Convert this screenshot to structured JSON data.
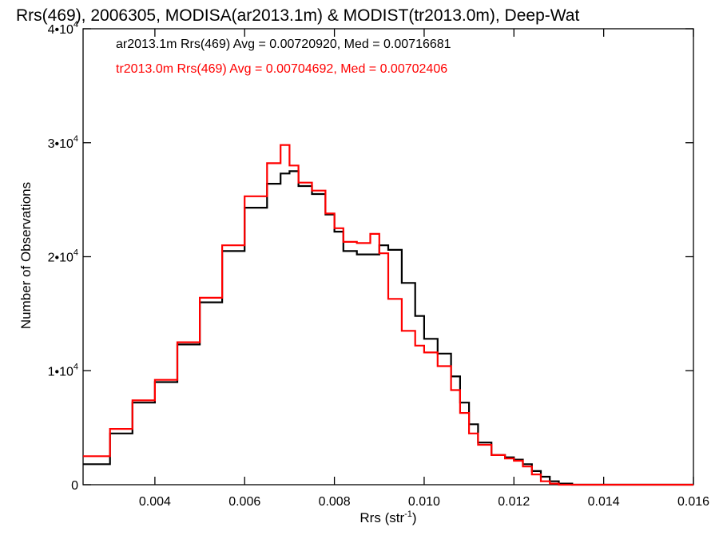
{
  "chart_data": {
    "type": "line",
    "title": "Rrs(469), 2006305, MODISA(ar2013.1m) & MODIST(tr2013.0m), Deep-Wat",
    "xlabel": "Rrs (str",
    "xlabel_sup": "-1",
    "xlabel_close": ")",
    "ylabel": "Number of Observations",
    "xlim": [
      0.0024,
      0.016
    ],
    "ylim": [
      0,
      40000
    ],
    "x_ticks": [
      0.004,
      0.006,
      0.008,
      0.01,
      0.012,
      0.014,
      0.016
    ],
    "x_tick_labels": [
      "0.004",
      "0.006",
      "0.008",
      "0.010",
      "0.012",
      "0.014",
      "0.016"
    ],
    "y_ticks": [
      0,
      10000,
      20000,
      30000,
      40000
    ],
    "y_tick_labels": [
      {
        "base": "0",
        "exp": ""
      },
      {
        "base": "1•10",
        "exp": "4"
      },
      {
        "base": "2•10",
        "exp": "4"
      },
      {
        "base": "3•10",
        "exp": "4"
      },
      {
        "base": "4•10",
        "exp": "4"
      }
    ],
    "grid": false,
    "legend_position": "top-left",
    "series": [
      {
        "name": "ar2013.1m Rrs(469) Avg = 0.00720920, Med = 0.00716681",
        "color": "#000000",
        "style": "step",
        "x": [
          0.0024,
          0.003,
          0.0035,
          0.004,
          0.0045,
          0.005,
          0.0055,
          0.006,
          0.0065,
          0.0068,
          0.007,
          0.0072,
          0.0075,
          0.0078,
          0.008,
          0.0082,
          0.0085,
          0.0088,
          0.009,
          0.0092,
          0.0095,
          0.0098,
          0.01,
          0.0103,
          0.0106,
          0.0108,
          0.011,
          0.0112,
          0.0115,
          0.0118,
          0.012,
          0.0122,
          0.0124,
          0.0126,
          0.0128,
          0.013,
          0.0133,
          0.0136,
          0.014,
          0.015,
          0.016
        ],
        "y": [
          1800,
          4500,
          7200,
          9000,
          12300,
          16000,
          20500,
          24300,
          26400,
          27300,
          27500,
          26200,
          25500,
          23700,
          22200,
          20500,
          20200,
          20200,
          21000,
          20600,
          17700,
          14800,
          12800,
          11500,
          9500,
          7200,
          5300,
          3700,
          2600,
          2400,
          2200,
          1800,
          1200,
          700,
          300,
          100,
          0,
          0,
          0,
          0,
          0
        ]
      },
      {
        "name": "tr2013.0m Rrs(469) Avg = 0.00704692, Med = 0.00702406",
        "color": "#ff0000",
        "style": "step",
        "x": [
          0.0024,
          0.003,
          0.0035,
          0.004,
          0.0045,
          0.005,
          0.0055,
          0.006,
          0.0065,
          0.0068,
          0.007,
          0.0072,
          0.0075,
          0.0078,
          0.008,
          0.0082,
          0.0085,
          0.0088,
          0.009,
          0.0092,
          0.0095,
          0.0098,
          0.01,
          0.0103,
          0.0106,
          0.0108,
          0.011,
          0.0112,
          0.0115,
          0.0118,
          0.012,
          0.0122,
          0.0124,
          0.0126,
          0.0128,
          0.013,
          0.0133,
          0.0136,
          0.014,
          0.015,
          0.016
        ],
        "y": [
          2500,
          4900,
          7400,
          9200,
          12500,
          16400,
          21000,
          25300,
          28200,
          29800,
          28000,
          26500,
          25800,
          23800,
          22500,
          21300,
          21200,
          22000,
          20300,
          16300,
          13500,
          12200,
          11600,
          10400,
          8300,
          6300,
          4500,
          3500,
          2600,
          2300,
          2100,
          1600,
          900,
          300,
          100,
          0,
          0,
          0,
          0,
          0,
          0
        ]
      }
    ]
  }
}
